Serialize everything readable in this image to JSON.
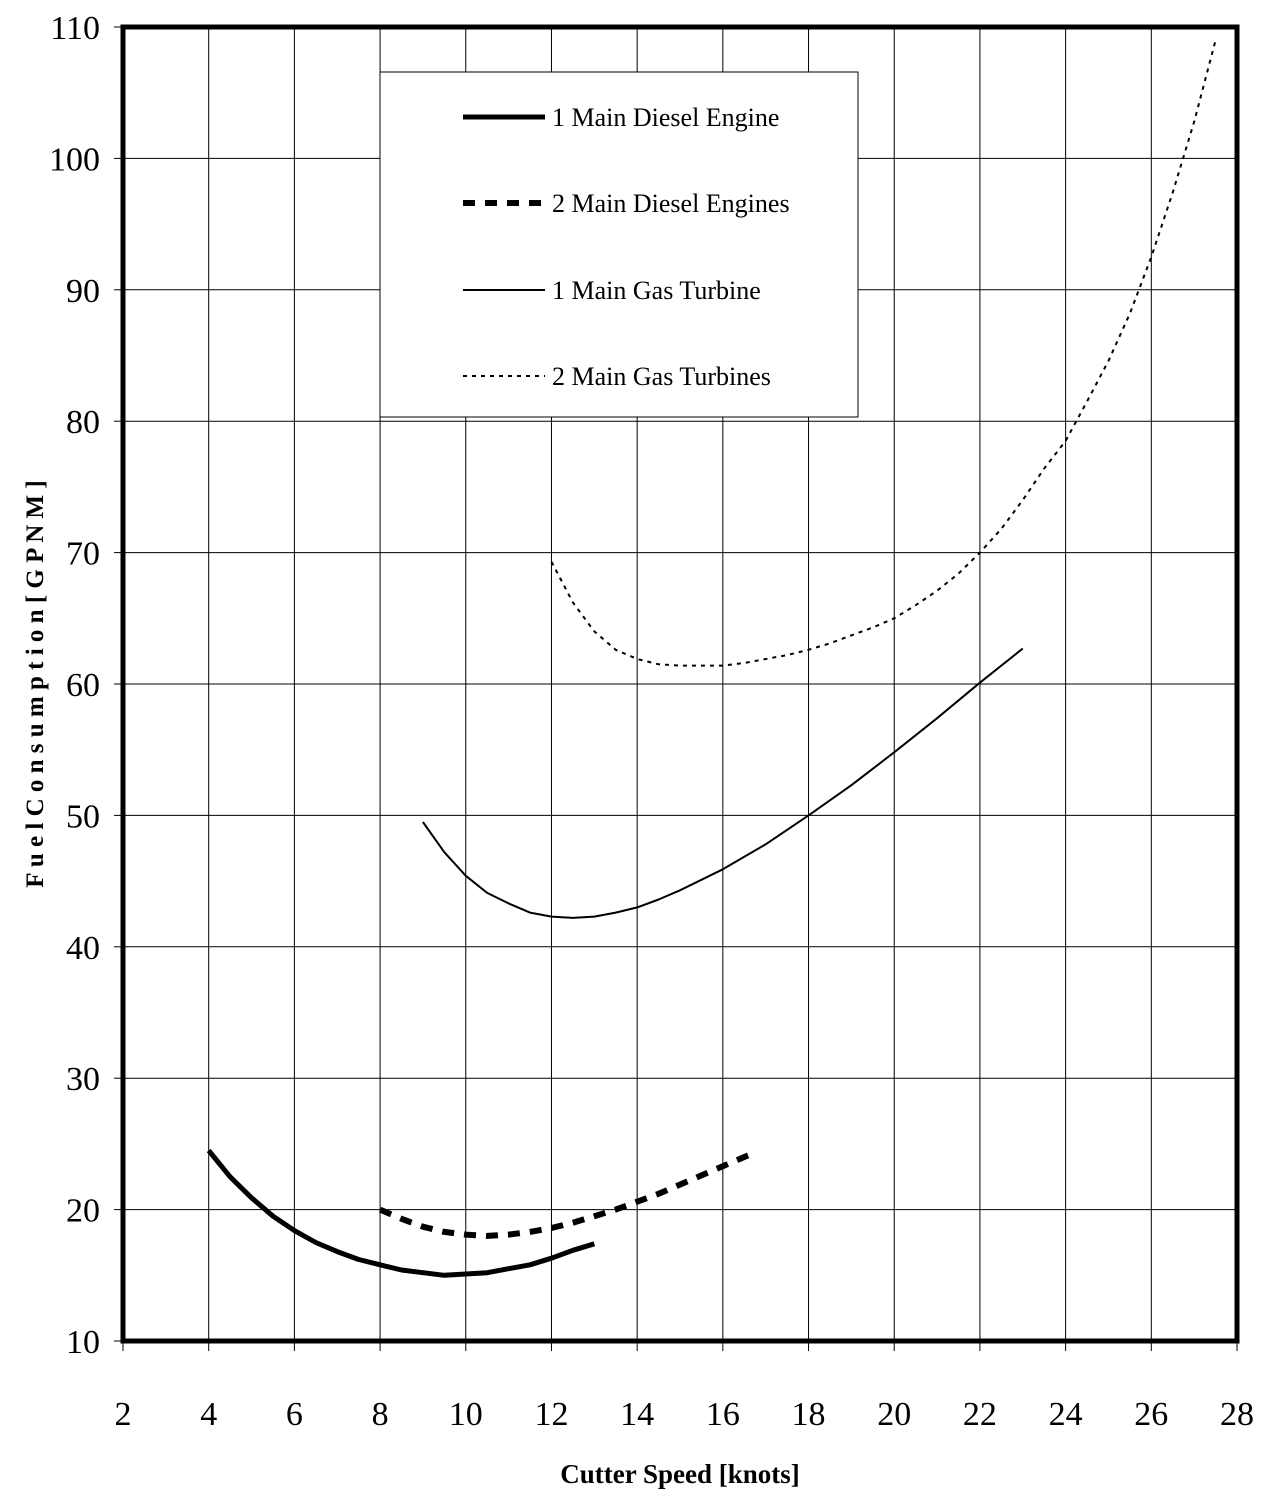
{
  "chart_data": {
    "type": "line",
    "title": "",
    "xlabel": "Cutter Speed [knots]",
    "ylabel": "F u e l  C o n s u m p t i o n  [ G P N M ]",
    "xlim": [
      2,
      28
    ],
    "ylim": [
      10,
      110
    ],
    "xticks": [
      2,
      4,
      6,
      8,
      10,
      12,
      14,
      16,
      18,
      20,
      22,
      24,
      26,
      28
    ],
    "yticks": [
      10,
      20,
      30,
      40,
      50,
      60,
      70,
      80,
      90,
      100,
      110
    ],
    "grid": true,
    "legend_position": "top-center",
    "series": [
      {
        "name": "1 Main Diesel Engine",
        "style": "thick-solid",
        "x": [
          4,
          4.5,
          5,
          5.5,
          6,
          6.5,
          7,
          7.5,
          8,
          8.5,
          9,
          9.5,
          10,
          10.5,
          11,
          11.5,
          12,
          12.5,
          13
        ],
        "y": [
          24.5,
          22.5,
          20.9,
          19.5,
          18.4,
          17.5,
          16.8,
          16.2,
          15.8,
          15.4,
          15.2,
          15.0,
          15.1,
          15.2,
          15.5,
          15.8,
          16.3,
          16.9,
          17.4
        ]
      },
      {
        "name": "2 Main Diesel Engines",
        "style": "thick-dashed",
        "x": [
          8,
          8.5,
          9,
          9.5,
          10,
          10.5,
          11,
          11.5,
          12,
          12.5,
          13,
          13.5,
          14,
          14.5,
          15,
          15.5,
          16,
          16.5,
          16.8
        ],
        "y": [
          20.0,
          19.3,
          18.7,
          18.3,
          18.1,
          18.0,
          18.1,
          18.3,
          18.6,
          19.0,
          19.5,
          20.0,
          20.6,
          21.2,
          21.9,
          22.6,
          23.3,
          24.0,
          24.4
        ]
      },
      {
        "name": "1 Main Gas Turbine",
        "style": "thin-solid",
        "x": [
          9,
          9.5,
          10,
          10.5,
          11,
          11.5,
          12,
          12.5,
          13,
          13.5,
          14,
          14.5,
          15,
          15.5,
          16,
          17,
          18,
          19,
          20,
          21,
          22,
          23
        ],
        "y": [
          49.5,
          47.2,
          45.4,
          44.1,
          43.3,
          42.6,
          42.3,
          42.2,
          42.3,
          42.6,
          43.0,
          43.6,
          44.3,
          45.1,
          45.9,
          47.8,
          50.0,
          52.3,
          54.8,
          57.4,
          60.1,
          62.7
        ]
      },
      {
        "name": "2 Main Gas Turbines",
        "style": "thin-dotted",
        "x": [
          12,
          12.5,
          13,
          13.5,
          14,
          14.5,
          15,
          15.5,
          16,
          16.5,
          17,
          17.5,
          18,
          18.5,
          19,
          19.5,
          20,
          20.5,
          21,
          21.5,
          22,
          22.5,
          23,
          23.5,
          24,
          24.5,
          25,
          25.5,
          26,
          26.5,
          27,
          27.5
        ],
        "y": [
          69.3,
          66.2,
          64.0,
          62.6,
          61.9,
          61.5,
          61.4,
          61.4,
          61.4,
          61.6,
          61.9,
          62.2,
          62.6,
          63.1,
          63.7,
          64.3,
          65.0,
          66.0,
          67.1,
          68.4,
          70.0,
          71.8,
          74.0,
          76.4,
          78.5,
          81.5,
          84.6,
          88.2,
          92.5,
          97.4,
          102.8,
          109.0
        ]
      }
    ]
  }
}
